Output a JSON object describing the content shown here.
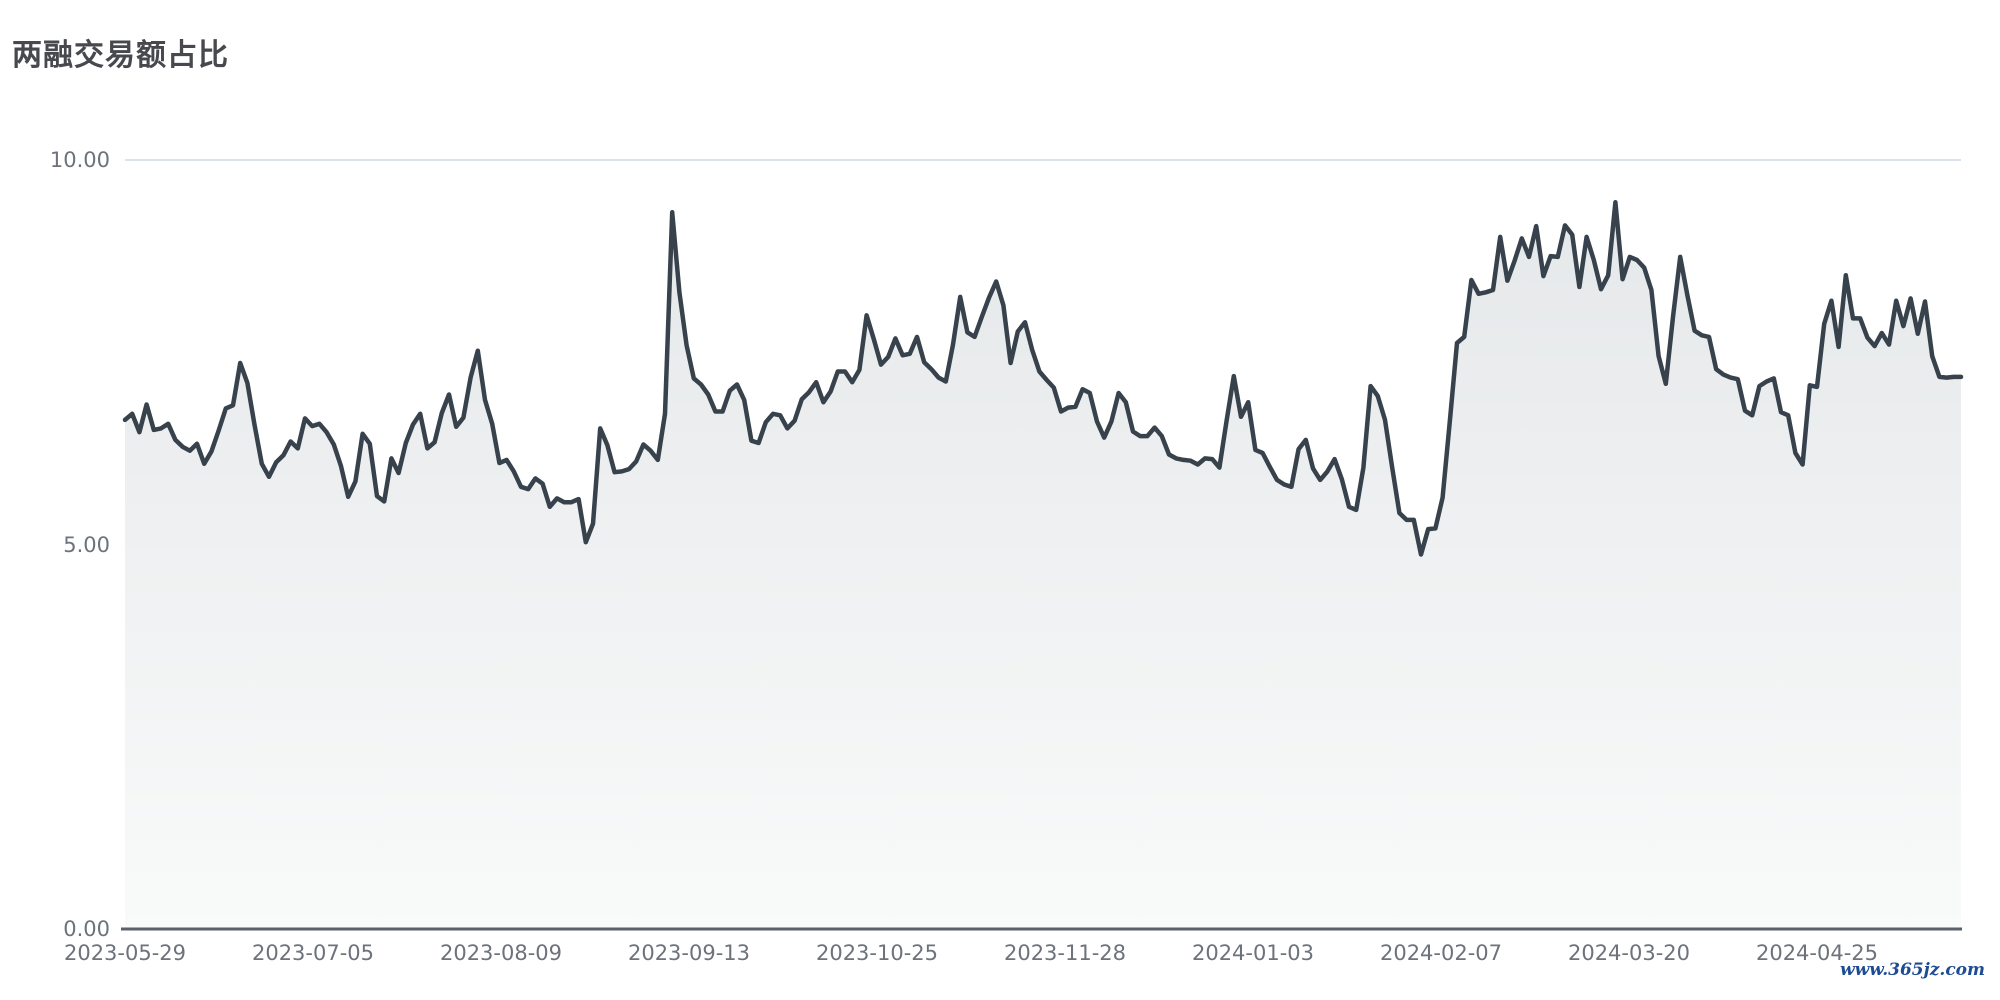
{
  "title": "两融交易额占比",
  "watermark": "www.365jz.com",
  "colors": {
    "title_text": "#47494e",
    "tick_text": "#6d727b",
    "line": "#38424c",
    "area_top": "#e4e7e9",
    "area_bottom": "#f9fafa",
    "gridline": "#dde3ec",
    "axis_line": "#5a616a",
    "watermark_text": "#1d4c92",
    "background": "#ffffff"
  },
  "chart_data": {
    "type": "area",
    "title": "两融交易额占比",
    "xlabel": "",
    "ylabel": "",
    "ylim": [
      0,
      10
    ],
    "grid": "horizontal",
    "legend_position": "none",
    "x_tick_labels": [
      "2023-05-29",
      "2023-07-05",
      "2023-08-09",
      "2023-09-13",
      "2023-10-25",
      "2023-11-28",
      "2024-01-03",
      "2024-02-07",
      "2024-03-20",
      "2024-04-25"
    ],
    "y_ticks": [
      {
        "label": "0.00",
        "value": 0
      },
      {
        "label": "5.00",
        "value": 5
      },
      {
        "label": "10.00",
        "value": 10
      }
    ],
    "series": [
      {
        "name": "两融交易额占比",
        "values": [
          6.62,
          6.7,
          6.46,
          6.82,
          6.49,
          6.51,
          6.57,
          6.36,
          6.27,
          6.22,
          6.31,
          6.05,
          6.21,
          6.48,
          6.77,
          6.81,
          7.36,
          7.1,
          6.55,
          6.05,
          5.88,
          6.07,
          6.16,
          6.34,
          6.25,
          6.64,
          6.54,
          6.57,
          6.46,
          6.3,
          6.02,
          5.62,
          5.82,
          6.44,
          6.31,
          5.63,
          5.56,
          6.12,
          5.93,
          6.32,
          6.56,
          6.7,
          6.25,
          6.33,
          6.71,
          6.95,
          6.53,
          6.65,
          7.17,
          7.52,
          6.88,
          6.57,
          6.06,
          6.1,
          5.95,
          5.75,
          5.72,
          5.86,
          5.79,
          5.49,
          5.6,
          5.55,
          5.55,
          5.59,
          5.03,
          5.27,
          6.51,
          6.29,
          5.94,
          5.95,
          5.98,
          6.08,
          6.3,
          6.22,
          6.1,
          6.7,
          9.32,
          8.28,
          7.59,
          7.16,
          7.08,
          6.95,
          6.73,
          6.73,
          7.0,
          7.08,
          6.88,
          6.35,
          6.32,
          6.59,
          6.7,
          6.68,
          6.51,
          6.61,
          6.89,
          6.98,
          7.11,
          6.85,
          6.99,
          7.25,
          7.25,
          7.11,
          7.27,
          7.98,
          7.67,
          7.34,
          7.44,
          7.68,
          7.46,
          7.48,
          7.7,
          7.37,
          7.28,
          7.17,
          7.12,
          7.6,
          8.22,
          7.76,
          7.7,
          7.96,
          8.21,
          8.42,
          8.11,
          7.36,
          7.77,
          7.89,
          7.53,
          7.25,
          7.14,
          7.04,
          6.73,
          6.78,
          6.79,
          7.02,
          6.97,
          6.6,
          6.39,
          6.6,
          6.97,
          6.85,
          6.47,
          6.41,
          6.41,
          6.52,
          6.41,
          6.17,
          6.12,
          6.1,
          6.09,
          6.04,
          6.12,
          6.11,
          6.0,
          6.61,
          7.19,
          6.66,
          6.85,
          6.23,
          6.19,
          6.01,
          5.84,
          5.78,
          5.75,
          6.24,
          6.36,
          5.99,
          5.84,
          5.95,
          6.11,
          5.85,
          5.49,
          5.45,
          6.0,
          7.06,
          6.93,
          6.62,
          6.0,
          5.41,
          5.32,
          5.32,
          4.87,
          5.2,
          5.21,
          5.61,
          6.6,
          7.62,
          7.7,
          8.44,
          8.26,
          8.28,
          8.31,
          9.0,
          8.43,
          8.69,
          8.98,
          8.74,
          9.14,
          8.49,
          8.75,
          8.74,
          9.15,
          9.03,
          8.35,
          9.0,
          8.7,
          8.32,
          8.5,
          9.45,
          8.45,
          8.74,
          8.7,
          8.6,
          8.31,
          7.45,
          7.09,
          7.96,
          8.74,
          8.24,
          7.78,
          7.72,
          7.7,
          7.28,
          7.21,
          7.17,
          7.15,
          6.74,
          6.68,
          7.06,
          7.12,
          7.16,
          6.72,
          6.68,
          6.19,
          6.04,
          7.07,
          7.05,
          7.87,
          8.17,
          7.57,
          8.5,
          7.94,
          7.94,
          7.69,
          7.58,
          7.75,
          7.6,
          8.17,
          7.84,
          8.2,
          7.74,
          8.16,
          7.45,
          7.18,
          7.17,
          7.18,
          7.18
        ]
      }
    ]
  }
}
